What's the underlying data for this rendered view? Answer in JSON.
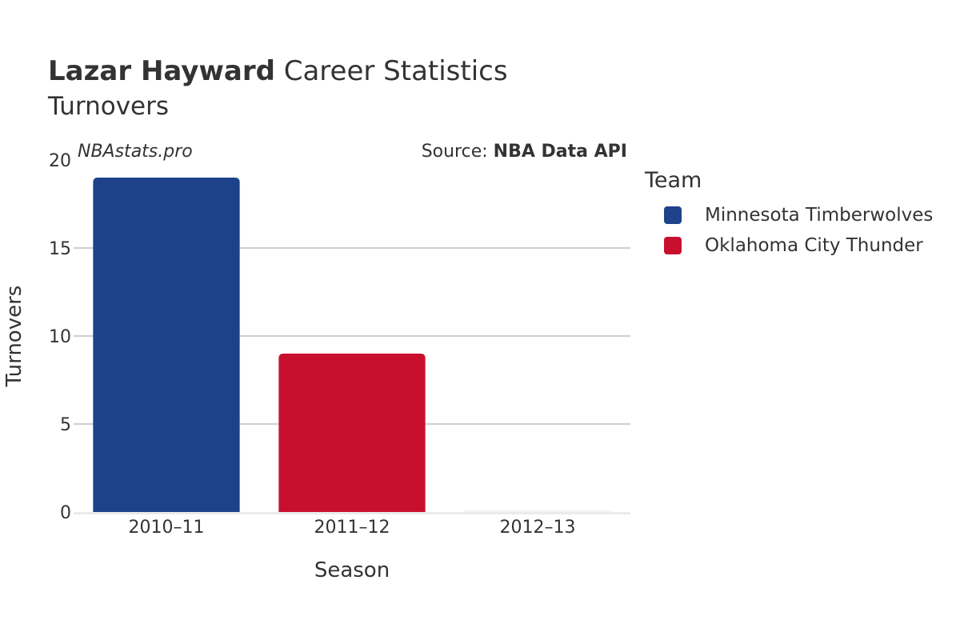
{
  "header": {
    "title_bold": "Lazar Hayward",
    "title_rest": " Career Statistics",
    "subtitle": "Turnovers",
    "watermark": "NBAstats.pro",
    "source_prefix": "Source: ",
    "source_name": "NBA Data API"
  },
  "legend": {
    "title": "Team",
    "items": [
      {
        "label": "Minnesota Timberwolves",
        "color": "#1d428a"
      },
      {
        "label": "Oklahoma City Thunder",
        "color": "#c8102e"
      }
    ]
  },
  "chart_data": {
    "type": "bar",
    "title": "Lazar Hayward Career Statistics",
    "subtitle": "Turnovers",
    "xlabel": "Season",
    "ylabel": "Turnovers",
    "categories": [
      "2010–11",
      "2011–12",
      "2012–13"
    ],
    "values": [
      19,
      9,
      0
    ],
    "teams": [
      "Minnesota Timberwolves",
      "Oklahoma City Thunder",
      ""
    ],
    "colors": [
      "#1d428a",
      "#c8102e",
      "#ffffff"
    ],
    "ylim": [
      0,
      20
    ],
    "yticks": [
      0,
      5,
      10,
      15,
      20
    ],
    "grid": true,
    "legend_position": "right"
  }
}
